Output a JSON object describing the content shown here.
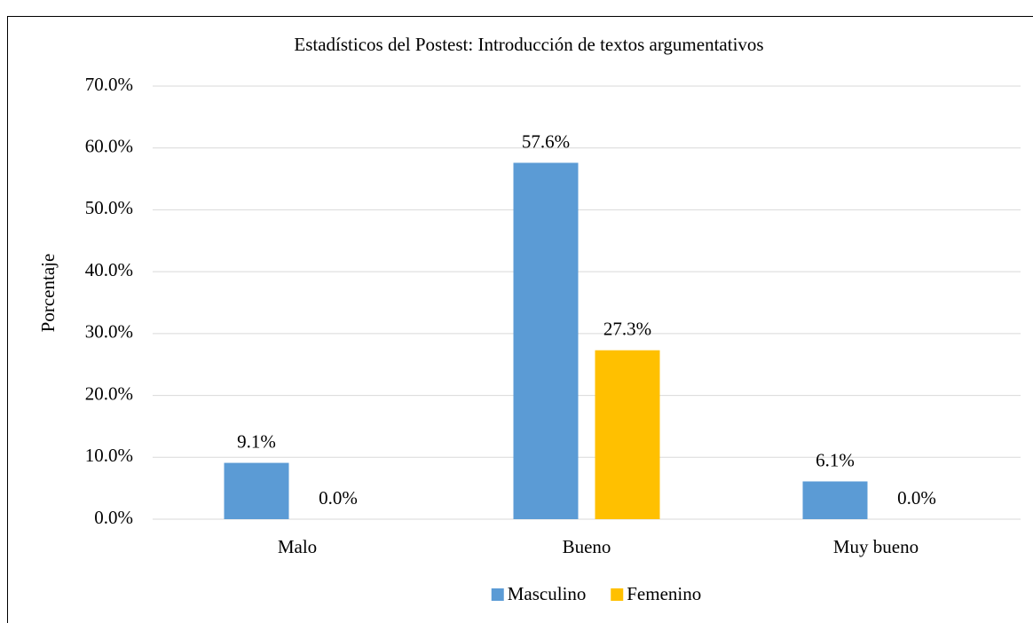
{
  "chart_data": {
    "type": "bar",
    "title": "Estadísticos del Postest: Introducción de textos argumentativos",
    "y_label": "Porcentaje",
    "categories": [
      "Malo",
      "Bueno",
      "Muy bueno"
    ],
    "series": [
      {
        "name": "Masculino",
        "color": "#5b9bd5",
        "values": [
          9.1,
          57.6,
          6.1
        ],
        "value_labels": [
          "9.1%",
          "57.6%",
          "6.1%"
        ]
      },
      {
        "name": "Femenino",
        "color": "#ffc000",
        "values": [
          0,
          27.3,
          0
        ],
        "value_labels": [
          "0.0%",
          "27.3%",
          "0.0%"
        ]
      }
    ],
    "ylim": [
      0,
      70
    ],
    "yticks": [
      {
        "value": 0,
        "label": "0.0%"
      },
      {
        "value": 10,
        "label": "10.0%"
      },
      {
        "value": 20,
        "label": "20.0%"
      },
      {
        "value": 30,
        "label": "30.0%"
      },
      {
        "value": 40,
        "label": "40.0%"
      },
      {
        "value": 50,
        "label": "50.0%"
      },
      {
        "value": 60,
        "label": "60.0%"
      },
      {
        "value": 70,
        "label": "70.0%"
      }
    ],
    "grid": true,
    "legend": "bottom"
  }
}
